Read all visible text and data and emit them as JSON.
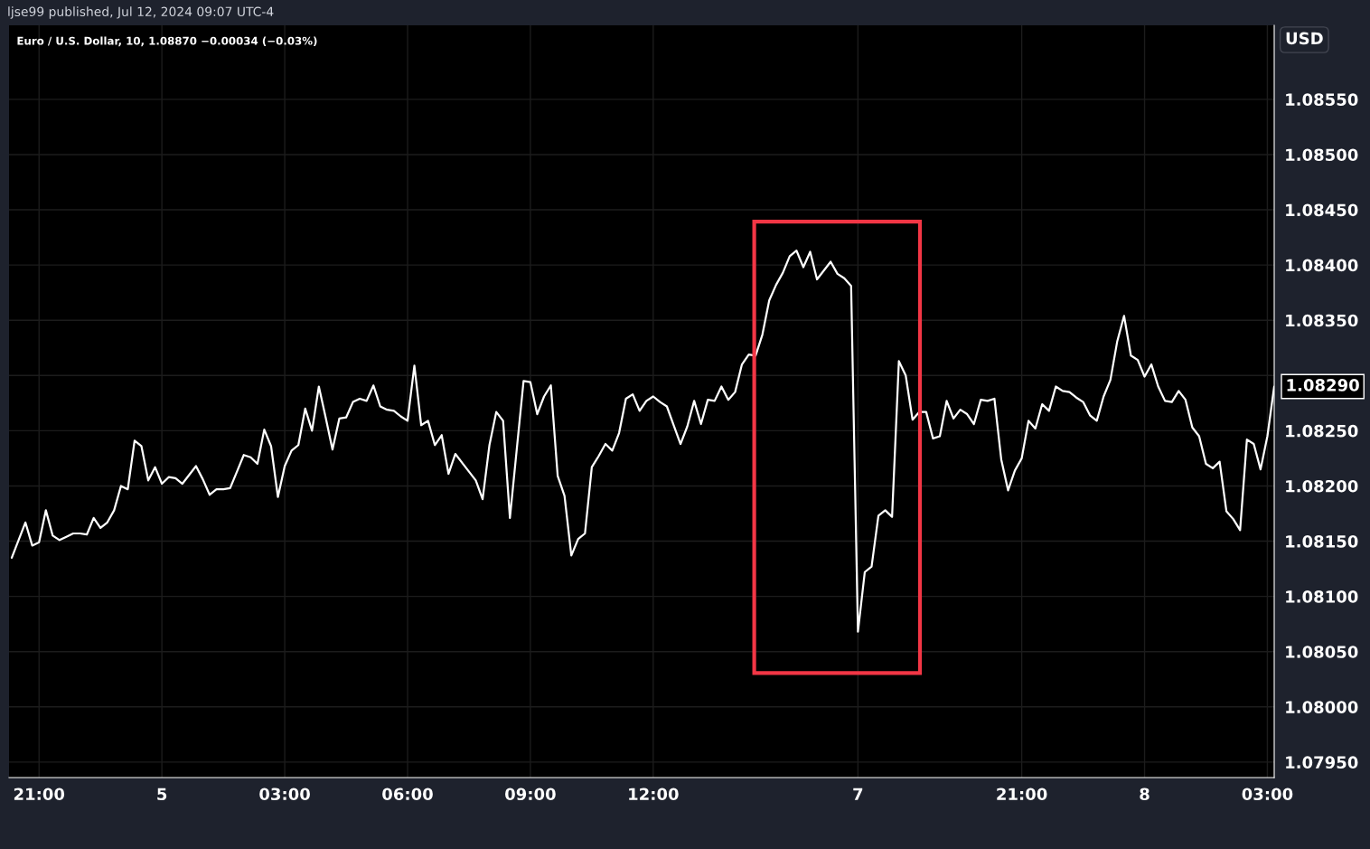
{
  "chart_data": {
    "type": "line",
    "title": "ljse99 published, Jul 12, 2024 09:07 UTC-4",
    "subtitle": "Euro / U.S. Dollar, 10, 1.08870 −0.00034 (−0.03%)",
    "ylabel": "USD",
    "categories": [
      null,
      null,
      null,
      null,
      "21:00",
      null,
      null,
      null,
      null,
      null,
      null,
      null,
      null,
      null,
      null,
      null,
      null,
      null,
      null,
      null,
      null,
      null,
      "5",
      null,
      null,
      null,
      null,
      null,
      null,
      null,
      null,
      null,
      null,
      null,
      null,
      null,
      null,
      null,
      null,
      null,
      "03:00",
      null,
      null,
      null,
      null,
      null,
      null,
      null,
      null,
      null,
      null,
      null,
      null,
      null,
      null,
      null,
      null,
      null,
      "06:00",
      null,
      null,
      null,
      null,
      null,
      null,
      null,
      null,
      null,
      null,
      null,
      null,
      null,
      null,
      null,
      null,
      null,
      "09:00",
      null,
      null,
      null,
      null,
      null,
      null,
      null,
      null,
      null,
      null,
      null,
      null,
      null,
      null,
      null,
      null,
      null,
      "12:00",
      null,
      null,
      null,
      null,
      null,
      null,
      null,
      null,
      null,
      null,
      null,
      null,
      null,
      null,
      null,
      null,
      null,
      null,
      null,
      null,
      null,
      null,
      null,
      null,
      null,
      null,
      null,
      null,
      null,
      "7",
      null,
      null,
      null,
      null,
      null,
      null,
      null,
      null,
      null,
      null,
      null,
      null,
      null,
      null,
      null,
      null,
      null,
      null,
      null,
      null,
      null,
      null,
      null,
      "21:00",
      null,
      null,
      null,
      null,
      null,
      null,
      null,
      null,
      null,
      null,
      null,
      null,
      null,
      null,
      null,
      null,
      null,
      "8",
      null,
      null,
      null,
      null,
      null,
      null,
      null,
      null,
      null,
      null,
      null,
      null,
      null,
      null,
      null,
      null,
      null,
      "03:00",
      null
    ],
    "series": [
      {
        "color": "#ffffff",
        "values": [
          1.08135,
          1.08151,
          1.08167,
          1.08146,
          1.08149,
          1.08178,
          1.08155,
          1.08151,
          1.08154,
          1.08157,
          1.08157,
          1.08156,
          1.08171,
          1.08162,
          1.08167,
          1.08178,
          1.082,
          1.08197,
          1.08241,
          1.08236,
          1.08205,
          1.08217,
          1.08202,
          1.08208,
          1.08207,
          1.08202,
          1.0821,
          1.08218,
          1.08206,
          1.08192,
          1.08197,
          1.08197,
          1.08198,
          1.08213,
          1.08228,
          1.08226,
          1.0822,
          1.08251,
          1.08236,
          1.0819,
          1.08218,
          1.08232,
          1.08237,
          1.0827,
          1.0825,
          1.0829,
          1.08262,
          1.08233,
          1.08261,
          1.08262,
          1.08276,
          1.08279,
          1.08277,
          1.08291,
          1.08272,
          1.08269,
          1.08268,
          1.08263,
          1.08259,
          1.08309,
          1.08255,
          1.08259,
          1.08237,
          1.08246,
          1.08211,
          1.08229,
          1.08221,
          1.08213,
          1.08205,
          1.08188,
          1.08237,
          1.08267,
          1.08259,
          1.08171,
          1.08233,
          1.08295,
          1.08294,
          1.08265,
          1.08281,
          1.08291,
          1.08209,
          1.08191,
          1.08137,
          1.08152,
          1.08157,
          1.08217,
          1.08227,
          1.08238,
          1.08232,
          1.08248,
          1.08279,
          1.08283,
          1.08268,
          1.08277,
          1.08281,
          1.08276,
          1.08272,
          1.08255,
          1.08238,
          1.08254,
          1.08277,
          1.08256,
          1.08278,
          1.08277,
          1.0829,
          1.08278,
          1.08285,
          1.0831,
          1.08319,
          1.08318,
          1.08337,
          1.08368,
          1.08382,
          1.08393,
          1.08408,
          1.08413,
          1.08398,
          1.08412,
          1.08387,
          1.08395,
          1.08403,
          1.08392,
          1.08388,
          1.08381,
          1.08068,
          1.08122,
          1.08127,
          1.08173,
          1.08178,
          1.08172,
          1.08313,
          1.083,
          1.0826,
          1.08267,
          1.08267,
          1.08243,
          1.08245,
          1.08277,
          1.08261,
          1.08269,
          1.08265,
          1.08256,
          1.08278,
          1.08277,
          1.08279,
          1.08224,
          1.08196,
          1.08214,
          1.08225,
          1.08259,
          1.08252,
          1.08274,
          1.08268,
          1.0829,
          1.08286,
          1.08285,
          1.0828,
          1.08276,
          1.08264,
          1.08259,
          1.08281,
          1.08296,
          1.08331,
          1.08354,
          1.08318,
          1.08314,
          1.08299,
          1.0831,
          1.0829,
          1.08277,
          1.08276,
          1.08286,
          1.08278,
          1.08253,
          1.08245,
          1.0822,
          1.08216,
          1.08222,
          1.08177,
          1.0817,
          1.0816,
          1.08242,
          1.08238,
          1.08215,
          1.08245,
          1.0829
        ]
      }
    ],
    "ylim": [
      1.07936,
      1.08617
    ],
    "yticks": [
      {
        "value": 1.0795,
        "label": "1.07950"
      },
      {
        "value": 1.08,
        "label": "1.08000"
      },
      {
        "value": 1.0805,
        "label": "1.08050"
      },
      {
        "value": 1.081,
        "label": "1.08100"
      },
      {
        "value": 1.0815,
        "label": "1.08150"
      },
      {
        "value": 1.082,
        "label": "1.08200"
      },
      {
        "value": 1.0825,
        "label": "1.08250"
      },
      {
        "value": 1.083,
        "label": null
      },
      {
        "value": 1.0835,
        "label": "1.08350"
      },
      {
        "value": 1.084,
        "label": "1.08400"
      },
      {
        "value": 1.0845,
        "label": "1.08450"
      },
      {
        "value": 1.085,
        "label": "1.08500"
      },
      {
        "value": 1.0855,
        "label": "1.08550"
      }
    ],
    "annotations": [
      "1.08290"
    ],
    "grid": true,
    "legend": false,
    "marker": "none",
    "line_style": "solid"
  }
}
